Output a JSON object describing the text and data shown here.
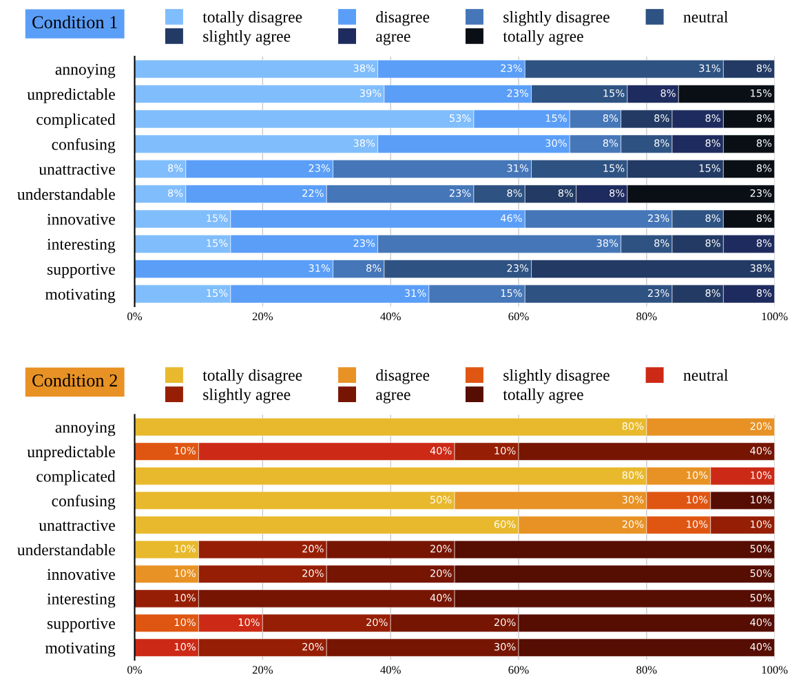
{
  "chart_data": [
    {
      "type": "bar",
      "title": "Condition 1",
      "orientation": "horizontal",
      "stacked": true,
      "legend": "top",
      "grid": "x",
      "categories": [
        "annoying",
        "unpredictable",
        "complicated",
        "confusing",
        "unattractive",
        "understandable",
        "innovative",
        "interesting",
        "supportive",
        "motivating"
      ],
      "xlim": [
        0,
        100
      ],
      "xticks": [
        {
          "value": 0,
          "label": "0%"
        },
        {
          "value": 20,
          "label": "20%"
        },
        {
          "value": 40,
          "label": "40%"
        },
        {
          "value": 60,
          "label": "60%"
        },
        {
          "value": 80,
          "label": "80%"
        },
        {
          "value": 100,
          "label": "100%"
        }
      ],
      "series": [
        {
          "name": "totally disagree",
          "color": "#80bdfc",
          "values": [
            38,
            39,
            53,
            38,
            8,
            8,
            15,
            15,
            null,
            15
          ],
          "value_labels": [
            "38%",
            "39%",
            "53%",
            "38%",
            "8%",
            "8%",
            "15%",
            "15%",
            null,
            "15%"
          ]
        },
        {
          "name": "disagree",
          "color": "#5a9ef8",
          "values": [
            23,
            23,
            15,
            30,
            23,
            22,
            46,
            23,
            31,
            31
          ],
          "value_labels": [
            "23%",
            "23%",
            "15%",
            "30%",
            "23%",
            "22%",
            "46%",
            "23%",
            "31%",
            "31%"
          ]
        },
        {
          "name": "slightly disagree",
          "color": "#4576b8",
          "values": [
            null,
            null,
            8,
            8,
            31,
            23,
            23,
            38,
            8,
            15
          ],
          "value_labels": [
            null,
            null,
            "8%",
            "8%",
            "31%",
            "23%",
            "23%",
            "38%",
            "8%",
            "15%"
          ]
        },
        {
          "name": "neutral",
          "color": "#2e5282",
          "values": [
            31,
            15,
            null,
            8,
            15,
            8,
            8,
            8,
            23,
            23
          ],
          "value_labels": [
            "31%",
            "15%",
            null,
            "8%",
            "15%",
            "8%",
            "8%",
            "8%",
            "23%",
            "23%"
          ]
        },
        {
          "name": "slightly agree",
          "color": "#223a64",
          "values": [
            8,
            null,
            8,
            null,
            15,
            8,
            null,
            8,
            38,
            8
          ],
          "value_labels": [
            "8%",
            null,
            "8%",
            null,
            "15%",
            "8%",
            null,
            "8%",
            "38%",
            "8%"
          ]
        },
        {
          "name": "agree",
          "color": "#1e2b5e",
          "values": [
            null,
            8,
            8,
            8,
            null,
            8,
            null,
            8,
            null,
            8
          ],
          "value_labels": [
            null,
            "8%",
            "8%",
            "8%",
            null,
            "8%",
            null,
            "8%",
            null,
            "8%"
          ]
        },
        {
          "name": "totally agree",
          "color": "#0a0f16",
          "values": [
            null,
            15,
            8,
            8,
            8,
            23,
            8,
            null,
            null,
            null
          ],
          "value_labels": [
            null,
            "15%",
            "8%",
            "8%",
            "8%",
            "23%",
            "8%",
            null,
            null,
            null
          ]
        }
      ]
    },
    {
      "type": "bar",
      "title": "Condition 2",
      "orientation": "horizontal",
      "stacked": true,
      "legend": "top",
      "grid": "x",
      "categories": [
        "annoying",
        "unpredictable",
        "complicated",
        "confusing",
        "unattractive",
        "understandable",
        "innovative",
        "interesting",
        "supportive",
        "motivating"
      ],
      "xlim": [
        0,
        100
      ],
      "xticks": [
        {
          "value": 0,
          "label": "0%"
        },
        {
          "value": 20,
          "label": "20%"
        },
        {
          "value": 40,
          "label": "40%"
        },
        {
          "value": 60,
          "label": "60%"
        },
        {
          "value": 80,
          "label": "80%"
        },
        {
          "value": 100,
          "label": "100%"
        }
      ],
      "series": [
        {
          "name": "totally disagree",
          "color": "#e8b92c",
          "values": [
            80,
            null,
            80,
            50,
            60,
            10,
            null,
            null,
            null,
            null
          ],
          "value_labels": [
            "80%",
            null,
            "80%",
            "50%",
            "60%",
            "10%",
            null,
            null,
            null,
            null
          ]
        },
        {
          "name": "disagree",
          "color": "#e89225",
          "values": [
            20,
            null,
            10,
            30,
            20,
            null,
            10,
            null,
            null,
            null
          ],
          "value_labels": [
            "20%",
            null,
            "10%",
            "30%",
            "20%",
            null,
            "10%",
            null,
            null,
            null
          ]
        },
        {
          "name": "slightly disagree",
          "color": "#df5612",
          "values": [
            null,
            10,
            null,
            10,
            10,
            null,
            null,
            null,
            10,
            null
          ],
          "value_labels": [
            null,
            "10%",
            null,
            "10%",
            "10%",
            null,
            null,
            null,
            "10%",
            null
          ]
        },
        {
          "name": "neutral",
          "color": "#cc2a16",
          "values": [
            null,
            40,
            10,
            null,
            null,
            null,
            null,
            null,
            10,
            10
          ],
          "value_labels": [
            null,
            "40%",
            "10%",
            null,
            null,
            null,
            null,
            null,
            "10%",
            "10%"
          ]
        },
        {
          "name": "slightly agree",
          "color": "#961e04",
          "values": [
            null,
            10,
            null,
            null,
            10,
            20,
            20,
            10,
            20,
            20
          ],
          "value_labels": [
            null,
            "10%",
            null,
            null,
            "10%",
            "20%",
            "20%",
            "10%",
            "20%",
            "20%"
          ]
        },
        {
          "name": "agree",
          "color": "#771503",
          "values": [
            null,
            40,
            null,
            null,
            null,
            20,
            20,
            40,
            20,
            30
          ],
          "value_labels": [
            null,
            "40%",
            null,
            null,
            null,
            "20%",
            "20%",
            "40%",
            "20%",
            "30%"
          ]
        },
        {
          "name": "totally agree",
          "color": "#560d02",
          "values": [
            null,
            null,
            null,
            10,
            null,
            50,
            50,
            50,
            40,
            40
          ],
          "value_labels": [
            null,
            null,
            null,
            "10%",
            null,
            "50%",
            "50%",
            "50%",
            "40%",
            "40%"
          ]
        }
      ]
    }
  ]
}
